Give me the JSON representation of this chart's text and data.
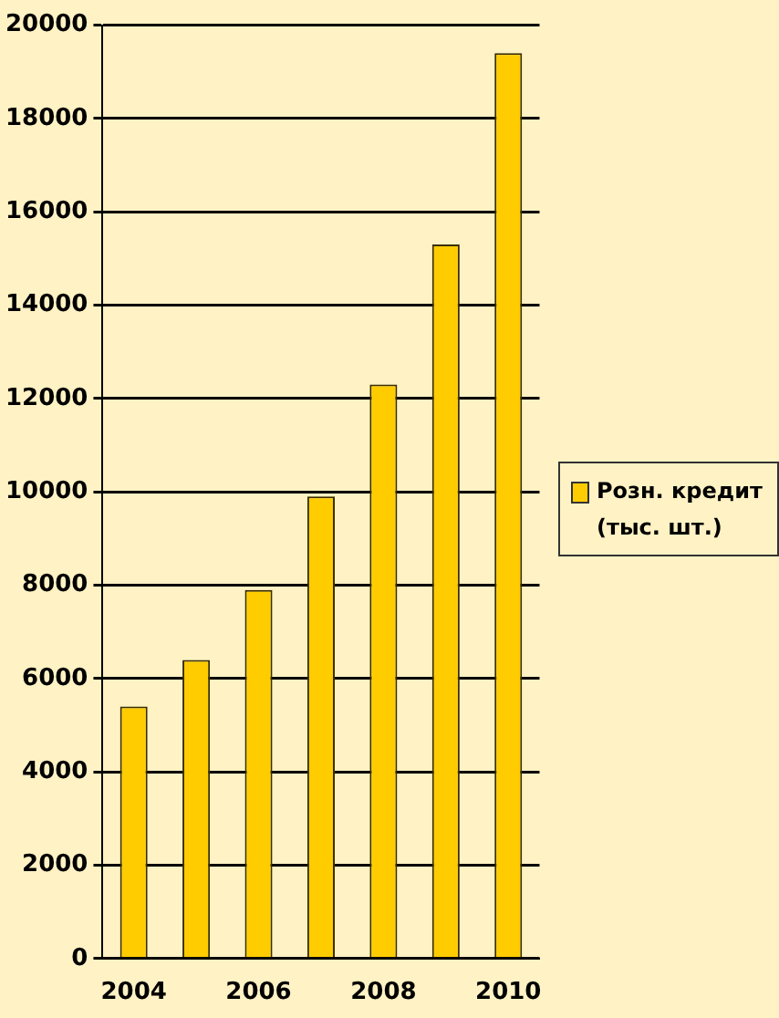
{
  "chart_data": {
    "type": "bar",
    "categories": [
      "2004",
      null,
      "2006",
      null,
      "2008",
      null,
      "2010"
    ],
    "series": [
      {
        "name": "Розн. кредит (тыс. шт.)",
        "color": "#ffcc00",
        "values": [
          5400,
          6400,
          7900,
          9900,
          12300,
          15300,
          19400
        ]
      }
    ],
    "ylim": [
      0,
      20000
    ],
    "yticks": [
      0,
      2000,
      4000,
      6000,
      8000,
      10000,
      12000,
      14000,
      16000,
      18000,
      20000
    ],
    "grid": "y",
    "legend": "right"
  }
}
